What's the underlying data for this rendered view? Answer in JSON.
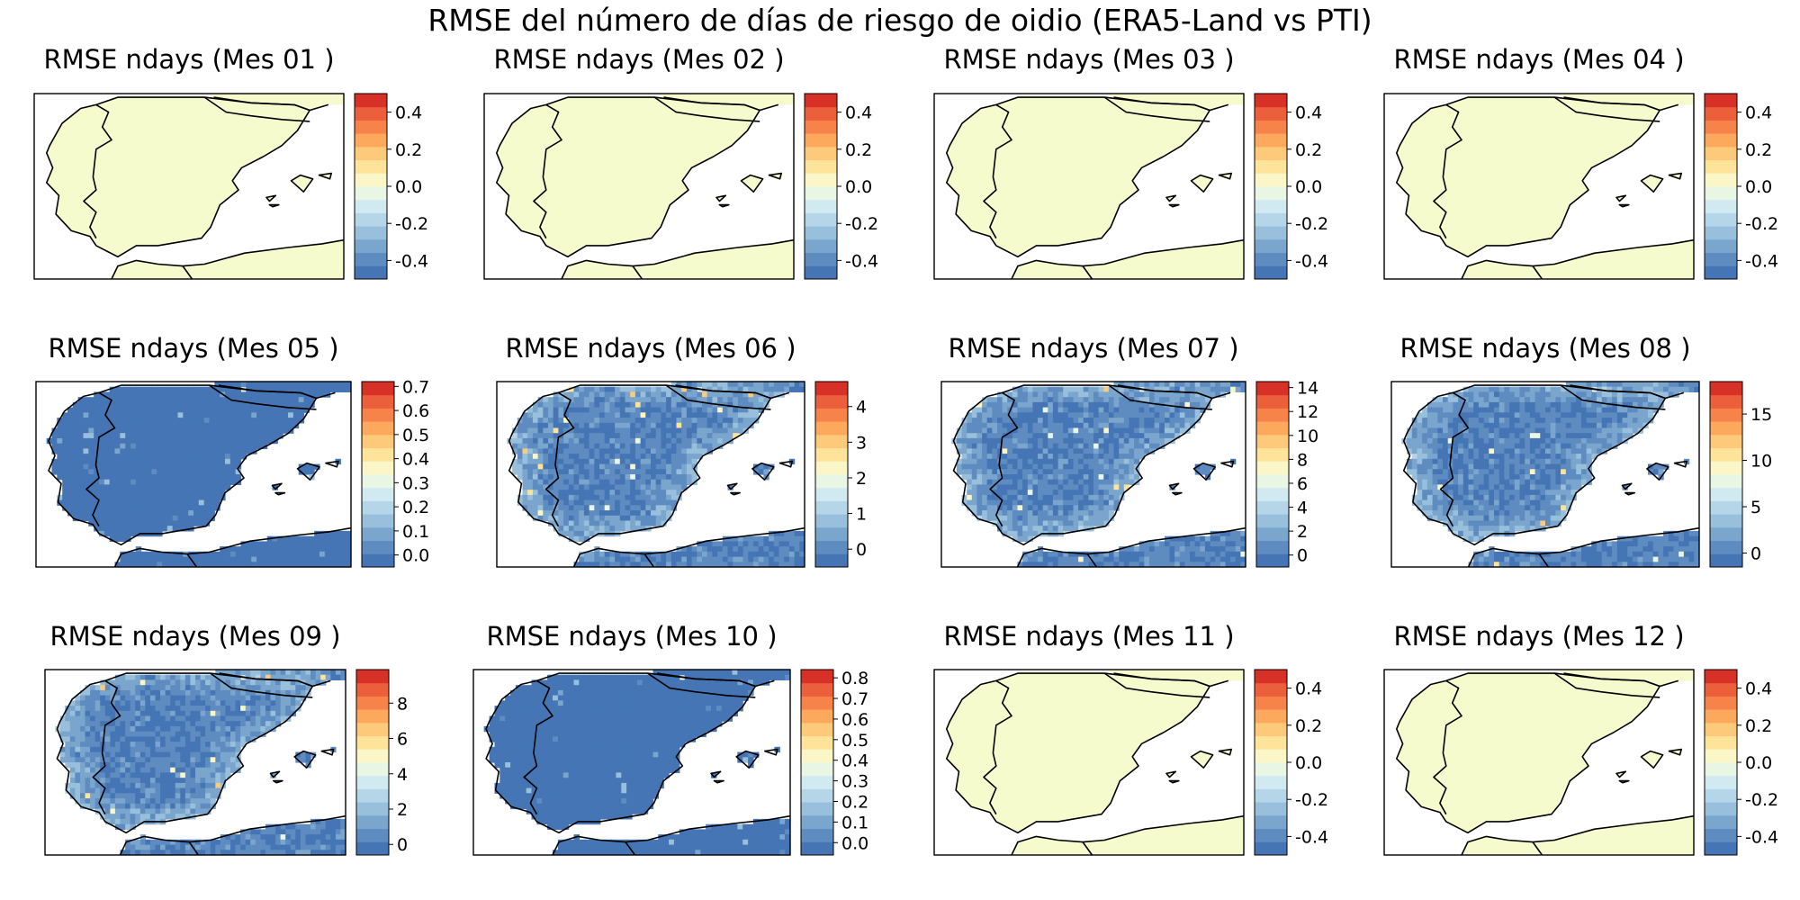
{
  "figure": {
    "title": "RMSE del número de días de riesgo de oidio (ERA5-Land vs PTI)"
  },
  "colors": {
    "land_zero": "#f6fbce",
    "field_low": "#4575b4",
    "colormap": [
      "#4575b4",
      "#5e8cc0",
      "#7aa5cd",
      "#98bfdb",
      "#b5d6e8",
      "#d1e9f1",
      "#e9f6e4",
      "#fbf6c8",
      "#fee49a",
      "#fdc97a",
      "#fca95e",
      "#f7834b",
      "#ec5f3b",
      "#d73027"
    ],
    "coastline": "#000000"
  },
  "chart_data": [
    {
      "type": "heatmap",
      "title": "RMSE ndays (Mes 01 )",
      "colorbar_ticks": [
        "0.4",
        "0.2",
        "0.0",
        "-0.2",
        "-0.4"
      ],
      "colorbar_tick_values": [
        0.4,
        0.2,
        0.0,
        -0.2,
        -0.4
      ],
      "vlim": [
        -0.5,
        0.5
      ],
      "field": "uniform-zero"
    },
    {
      "type": "heatmap",
      "title": "RMSE ndays (Mes 02 )",
      "colorbar_ticks": [
        "0.4",
        "0.2",
        "0.0",
        "-0.2",
        "-0.4"
      ],
      "colorbar_tick_values": [
        0.4,
        0.2,
        0.0,
        -0.2,
        -0.4
      ],
      "vlim": [
        -0.5,
        0.5
      ],
      "field": "uniform-zero"
    },
    {
      "type": "heatmap",
      "title": "RMSE ndays (Mes 03 )",
      "colorbar_ticks": [
        "0.4",
        "0.2",
        "0.0",
        "-0.2",
        "-0.4"
      ],
      "colorbar_tick_values": [
        0.4,
        0.2,
        0.0,
        -0.2,
        -0.4
      ],
      "vlim": [
        -0.5,
        0.5
      ],
      "field": "uniform-zero"
    },
    {
      "type": "heatmap",
      "title": "RMSE ndays (Mes 04 )",
      "colorbar_ticks": [
        "0.4",
        "0.2",
        "0.0",
        "-0.2",
        "-0.4"
      ],
      "colorbar_tick_values": [
        0.4,
        0.2,
        0.0,
        -0.2,
        -0.4
      ],
      "vlim": [
        -0.5,
        0.5
      ],
      "field": "uniform-zero"
    },
    {
      "type": "heatmap",
      "title": "RMSE ndays (Mes 05 )",
      "colorbar_ticks": [
        "0.7",
        "0.6",
        "0.5",
        "0.4",
        "0.3",
        "0.2",
        "0.1",
        "0.0"
      ],
      "colorbar_tick_values": [
        0.7,
        0.6,
        0.5,
        0.4,
        0.3,
        0.2,
        0.1,
        0.0
      ],
      "vlim": [
        -0.05,
        0.72
      ],
      "field": "mostly-low"
    },
    {
      "type": "heatmap",
      "title": "RMSE ndays (Mes 06 )",
      "colorbar_ticks": [
        "4",
        "3",
        "2",
        "1",
        "0"
      ],
      "colorbar_tick_values": [
        4,
        3,
        2,
        1,
        0
      ],
      "vlim": [
        -0.5,
        4.7
      ],
      "field": "low-with-coastal-rise"
    },
    {
      "type": "heatmap",
      "title": "RMSE ndays (Mes 07 )",
      "colorbar_ticks": [
        "14",
        "12",
        "10",
        "8",
        "6",
        "4",
        "2",
        "0"
      ],
      "colorbar_tick_values": [
        14,
        12,
        10,
        8,
        6,
        4,
        2,
        0
      ],
      "vlim": [
        -1,
        14.5
      ],
      "field": "low-with-coastal-rise"
    },
    {
      "type": "heatmap",
      "title": "RMSE ndays (Mes 08 )",
      "colorbar_ticks": [
        "15",
        "10",
        "5",
        "0"
      ],
      "colorbar_tick_values": [
        15,
        10,
        5,
        0
      ],
      "vlim": [
        -1.5,
        18.5
      ],
      "field": "low-with-coastal-rise"
    },
    {
      "type": "heatmap",
      "title": "RMSE ndays (Mes 09 )",
      "colorbar_ticks": [
        "8",
        "6",
        "4",
        "2",
        "0"
      ],
      "colorbar_tick_values": [
        8,
        6,
        4,
        2,
        0
      ],
      "vlim": [
        -0.6,
        9.9
      ],
      "field": "low-with-coastal-rise"
    },
    {
      "type": "heatmap",
      "title": "RMSE ndays (Mes 10 )",
      "colorbar_ticks": [
        "0.8",
        "0.7",
        "0.6",
        "0.5",
        "0.4",
        "0.3",
        "0.2",
        "0.1",
        "0.0"
      ],
      "colorbar_tick_values": [
        0.8,
        0.7,
        0.6,
        0.5,
        0.4,
        0.3,
        0.2,
        0.1,
        0.0
      ],
      "vlim": [
        -0.06,
        0.84
      ],
      "field": "mostly-low"
    },
    {
      "type": "heatmap",
      "title": "RMSE ndays (Mes 11 )",
      "colorbar_ticks": [
        "0.4",
        "0.2",
        "0.0",
        "-0.2",
        "-0.4"
      ],
      "colorbar_tick_values": [
        0.4,
        0.2,
        0.0,
        -0.2,
        -0.4
      ],
      "vlim": [
        -0.5,
        0.5
      ],
      "field": "uniform-zero"
    },
    {
      "type": "heatmap",
      "title": "RMSE ndays (Mes 12 )",
      "colorbar_ticks": [
        "0.4",
        "0.2",
        "0.0",
        "-0.2",
        "-0.4"
      ],
      "colorbar_tick_values": [
        0.4,
        0.2,
        0.0,
        -0.2,
        -0.4
      ],
      "vlim": [
        -0.5,
        0.5
      ],
      "field": "uniform-zero"
    }
  ]
}
